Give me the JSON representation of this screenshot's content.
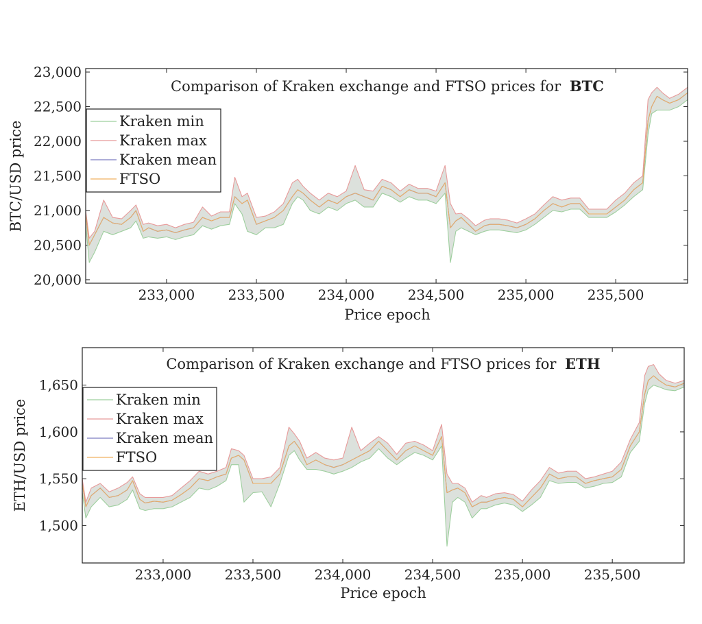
{
  "chart_data": [
    {
      "type": "area",
      "title_prefix": "Comparison of Kraken exchange and FTSO prices for",
      "title_asset": "BTC",
      "xlabel": "Price epoch",
      "ylabel": "BTC/USD price",
      "xlim": [
        232550,
        235900
      ],
      "ylim": [
        19950,
        23050
      ],
      "x_ticks": [
        233000,
        233500,
        234000,
        234500,
        235000,
        235500
      ],
      "x_tick_labels": [
        "233,000",
        "233,500",
        "234,000",
        "234,500",
        "235,000",
        "235,500"
      ],
      "y_ticks": [
        20000,
        20500,
        21000,
        21500,
        22000,
        22500,
        23000
      ],
      "y_tick_labels": [
        "20,000",
        "20,500",
        "21,000",
        "21,500",
        "22,000",
        "22,500",
        "23,000"
      ],
      "legend_position": "top-left",
      "legend": [
        "Kraken min",
        "Kraken max",
        "Kraken mean",
        "FTSO"
      ],
      "colors": {
        "min": "#9ecf9e",
        "max": "#e89a9a",
        "mean": "#7c7cc0",
        "ftso": "#f0b060",
        "band": "#d6dcd6"
      },
      "x": [
        232550,
        232570,
        232600,
        232650,
        232700,
        232750,
        232800,
        232830,
        232870,
        232900,
        232950,
        233000,
        233050,
        233100,
        233150,
        233200,
        233250,
        233300,
        233350,
        233380,
        233420,
        233450,
        233500,
        233550,
        233600,
        233650,
        233700,
        233730,
        233760,
        233800,
        233850,
        233900,
        233950,
        234000,
        234050,
        234100,
        234150,
        234200,
        234250,
        234300,
        234350,
        234400,
        234450,
        234500,
        234550,
        234580,
        234610,
        234640,
        234680,
        234720,
        234770,
        234800,
        234850,
        234900,
        234950,
        235000,
        235050,
        235100,
        235150,
        235200,
        235250,
        235300,
        235350,
        235400,
        235450,
        235500,
        235550,
        235600,
        235650,
        235680,
        235700,
        235730,
        235760,
        235800,
        235850,
        235900
      ],
      "mean": [
        20950,
        20500,
        20650,
        20900,
        20820,
        20800,
        20900,
        21000,
        20700,
        20750,
        20700,
        20720,
        20680,
        20720,
        20750,
        20900,
        20850,
        20900,
        20900,
        21200,
        21100,
        21150,
        20800,
        20850,
        20900,
        21000,
        21200,
        21300,
        21250,
        21150,
        21050,
        21150,
        21100,
        21200,
        21250,
        21200,
        21150,
        21350,
        21300,
        21200,
        21300,
        21250,
        21250,
        21200,
        21400,
        20750,
        20850,
        20900,
        20800,
        20700,
        20780,
        20800,
        20800,
        20780,
        20750,
        20800,
        20880,
        21000,
        21100,
        21050,
        21100,
        21100,
        20950,
        20950,
        20950,
        21050,
        21150,
        21300,
        21400,
        22300,
        22500,
        22650,
        22600,
        22550,
        22600,
        22700
      ],
      "min": [
        20800,
        20250,
        20400,
        20700,
        20650,
        20700,
        20750,
        20850,
        20600,
        20620,
        20600,
        20620,
        20580,
        20620,
        20650,
        20780,
        20730,
        20780,
        20800,
        21100,
        20950,
        20700,
        20650,
        20750,
        20750,
        20800,
        21100,
        21200,
        21150,
        21000,
        20950,
        21050,
        21000,
        21100,
        21150,
        21050,
        21050,
        21250,
        21200,
        21120,
        21200,
        21150,
        21150,
        21100,
        21250,
        20250,
        20700,
        20750,
        20700,
        20650,
        20700,
        20720,
        20720,
        20700,
        20680,
        20720,
        20800,
        20900,
        21000,
        20980,
        21020,
        21020,
        20900,
        20900,
        20900,
        20980,
        21080,
        21200,
        21300,
        22100,
        22400,
        22450,
        22450,
        22450,
        22500,
        22600
      ],
      "max": [
        21000,
        20600,
        20700,
        21150,
        20900,
        20880,
        21000,
        21080,
        20800,
        20820,
        20780,
        20800,
        20750,
        20800,
        20830,
        21050,
        20920,
        20980,
        20980,
        21480,
        21200,
        21250,
        20900,
        20920,
        20980,
        21100,
        21400,
        21450,
        21350,
        21250,
        21150,
        21250,
        21200,
        21280,
        21650,
        21300,
        21280,
        21450,
        21400,
        21280,
        21380,
        21320,
        21320,
        21280,
        21650,
        21100,
        20950,
        20960,
        20880,
        20780,
        20860,
        20880,
        20880,
        20860,
        20820,
        20880,
        20950,
        21080,
        21200,
        21150,
        21180,
        21180,
        21020,
        21020,
        21020,
        21150,
        21250,
        21400,
        21500,
        22600,
        22700,
        22780,
        22700,
        22620,
        22680,
        22780
      ]
    },
    {
      "type": "area",
      "title_prefix": "Comparison of Kraken exchange and FTSO prices for",
      "title_asset": "ETH",
      "xlabel": "Price epoch",
      "ylabel": "ETH/USD price",
      "xlim": [
        232550,
        235900
      ],
      "ylim": [
        1460,
        1690
      ],
      "x_ticks": [
        233000,
        233500,
        234000,
        234500,
        235000,
        235500
      ],
      "x_tick_labels": [
        "233,000",
        "233,500",
        "234,000",
        "234,500",
        "235,000",
        "235,500"
      ],
      "y_ticks": [
        1500,
        1550,
        1600,
        1650
      ],
      "y_tick_labels": [
        "1,500",
        "1,550",
        "1,600",
        "1,650"
      ],
      "legend_position": "top-left",
      "legend": [
        "Kraken min",
        "Kraken max",
        "Kraken mean",
        "FTSO"
      ],
      "colors": {
        "min": "#9ecf9e",
        "max": "#e89a9a",
        "mean": "#7c7cc0",
        "ftso": "#f0b060",
        "band": "#d6dcd6"
      },
      "x": [
        232550,
        232570,
        232600,
        232650,
        232700,
        232750,
        232800,
        232830,
        232870,
        232900,
        232950,
        233000,
        233050,
        233100,
        233150,
        233200,
        233250,
        233300,
        233350,
        233380,
        233420,
        233450,
        233500,
        233550,
        233600,
        233650,
        233700,
        233730,
        233760,
        233800,
        233850,
        233900,
        233950,
        234000,
        234050,
        234100,
        234150,
        234200,
        234250,
        234300,
        234350,
        234400,
        234450,
        234500,
        234550,
        234580,
        234610,
        234640,
        234680,
        234720,
        234770,
        234800,
        234850,
        234900,
        234950,
        235000,
        235050,
        235100,
        235150,
        235200,
        235250,
        235300,
        235350,
        235400,
        235450,
        235500,
        235550,
        235600,
        235650,
        235680,
        235700,
        235730,
        235760,
        235800,
        235850,
        235900
      ],
      "mean": [
        1545,
        1520,
        1532,
        1540,
        1530,
        1532,
        1538,
        1548,
        1528,
        1524,
        1526,
        1525,
        1527,
        1533,
        1540,
        1550,
        1548,
        1552,
        1555,
        1572,
        1575,
        1570,
        1545,
        1545,
        1545,
        1555,
        1585,
        1590,
        1582,
        1565,
        1570,
        1565,
        1562,
        1565,
        1570,
        1575,
        1580,
        1590,
        1580,
        1570,
        1580,
        1585,
        1580,
        1575,
        1595,
        1535,
        1538,
        1540,
        1535,
        1520,
        1525,
        1525,
        1528,
        1530,
        1528,
        1520,
        1530,
        1540,
        1555,
        1550,
        1552,
        1552,
        1545,
        1548,
        1550,
        1552,
        1560,
        1585,
        1600,
        1640,
        1655,
        1660,
        1655,
        1650,
        1648,
        1652
      ],
      "min": [
        1535,
        1508,
        1520,
        1530,
        1520,
        1522,
        1528,
        1538,
        1518,
        1516,
        1518,
        1518,
        1520,
        1525,
        1530,
        1540,
        1538,
        1542,
        1548,
        1565,
        1565,
        1525,
        1535,
        1536,
        1520,
        1545,
        1575,
        1580,
        1570,
        1560,
        1560,
        1558,
        1555,
        1558,
        1562,
        1568,
        1572,
        1582,
        1572,
        1565,
        1572,
        1578,
        1575,
        1570,
        1585,
        1478,
        1525,
        1530,
        1525,
        1508,
        1518,
        1518,
        1522,
        1524,
        1522,
        1515,
        1522,
        1530,
        1548,
        1545,
        1546,
        1546,
        1540,
        1542,
        1545,
        1546,
        1552,
        1578,
        1590,
        1630,
        1645,
        1650,
        1648,
        1645,
        1644,
        1648
      ],
      "max": [
        1550,
        1525,
        1540,
        1545,
        1536,
        1540,
        1546,
        1552,
        1534,
        1530,
        1530,
        1530,
        1532,
        1540,
        1548,
        1558,
        1555,
        1558,
        1562,
        1582,
        1580,
        1575,
        1550,
        1550,
        1552,
        1562,
        1605,
        1598,
        1590,
        1572,
        1578,
        1572,
        1570,
        1572,
        1605,
        1580,
        1588,
        1595,
        1588,
        1576,
        1588,
        1590,
        1586,
        1580,
        1608,
        1555,
        1545,
        1545,
        1540,
        1525,
        1532,
        1530,
        1534,
        1535,
        1533,
        1526,
        1538,
        1548,
        1562,
        1556,
        1558,
        1558,
        1550,
        1552,
        1555,
        1558,
        1568,
        1592,
        1610,
        1660,
        1670,
        1672,
        1662,
        1655,
        1652,
        1655
      ]
    }
  ]
}
